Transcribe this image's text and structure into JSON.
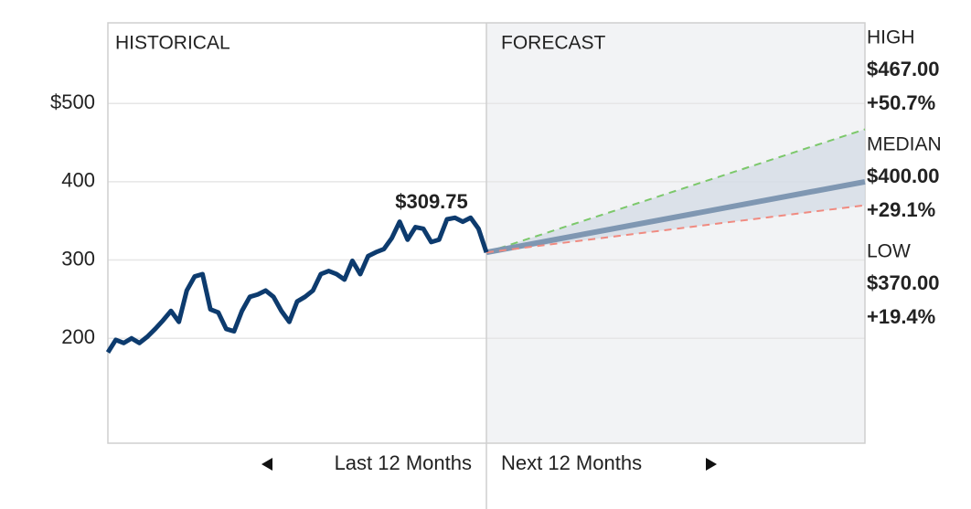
{
  "chart_data": {
    "type": "forecast",
    "section_labels": [
      "HISTORICAL",
      "FORECAST"
    ],
    "x_labels": [
      "Last 12 Months",
      "Next 12 Months"
    ],
    "xlim": [
      -12,
      12
    ],
    "ylim": [
      66,
      603
    ],
    "yticks": [
      {
        "value": 500,
        "label": "$500"
      },
      400,
      300,
      200
    ],
    "grid": true,
    "history": {
      "color": "#0d3b6e",
      "x": [
        -12,
        -11.75,
        -11.5,
        -11.25,
        -11,
        -10.75,
        -10.5,
        -10.25,
        -10,
        -9.75,
        -9.5,
        -9.25,
        -9,
        -8.75,
        -8.5,
        -8.25,
        -8,
        -7.75,
        -7.5,
        -7.25,
        -7,
        -6.75,
        -6.5,
        -6.25,
        -6,
        -5.75,
        -5.5,
        -5.25,
        -5,
        -4.75,
        -4.5,
        -4.25,
        -4,
        -3.75,
        -3.5,
        -3.25,
        -3,
        -2.75,
        -2.5,
        -2.25,
        -2,
        -1.75,
        -1.5,
        -1.25,
        -1,
        -0.75,
        -0.5,
        -0.25,
        0
      ],
      "values": [
        182,
        198,
        194,
        200,
        194,
        202,
        212,
        223,
        235,
        221,
        261,
        279,
        282,
        237,
        233,
        212,
        209,
        235,
        253,
        256,
        261,
        253,
        235,
        221,
        247,
        253,
        261,
        282,
        286,
        282,
        275,
        299,
        282,
        305,
        310,
        314,
        328,
        349,
        326,
        342,
        340,
        323,
        326,
        352,
        354,
        349,
        354,
        340,
        309.75
      ],
      "value_labels": [
        null,
        null,
        null,
        null,
        null,
        null,
        null,
        null,
        null,
        null,
        null,
        null,
        null,
        null,
        null,
        null,
        null,
        null,
        null,
        null,
        null,
        null,
        null,
        null,
        null,
        null,
        null,
        null,
        null,
        null,
        null,
        null,
        null,
        null,
        null,
        null,
        null,
        null,
        null,
        null,
        null,
        null,
        null,
        null,
        null,
        null,
        null,
        null,
        "$309.75"
      ]
    },
    "forecast": [
      {
        "name": "HIGH",
        "color": "#7cc86b",
        "x": [
          0,
          12
        ],
        "values": [
          309.75,
          467
        ],
        "value_labels": [
          null,
          "$467.00"
        ],
        "change": "+50.7%"
      },
      {
        "name": "MEDIAN",
        "color": "#7f97b2",
        "x": [
          0,
          12
        ],
        "values": [
          309.75,
          400
        ],
        "value_labels": [
          null,
          "$400.00"
        ],
        "change": "+29.1%"
      },
      {
        "name": "LOW",
        "color": "#f08a80",
        "x": [
          0,
          12
        ],
        "values": [
          309.75,
          370
        ],
        "value_labels": [
          null,
          "$370.00"
        ],
        "change": "+19.4%"
      }
    ]
  }
}
